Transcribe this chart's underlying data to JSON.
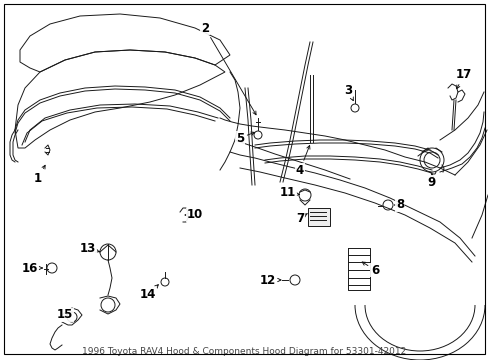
{
  "background_color": "#ffffff",
  "border_color": "#000000",
  "text_color": "#000000",
  "fig_width": 4.89,
  "fig_height": 3.6,
  "dpi": 100,
  "line_color": "#1a1a1a",
  "lw": 0.7,
  "caption": "1996 Toyota RAV4 Hood & Components Hood Diagram for 53301-42012",
  "caption_fontsize": 6.5,
  "label_fontsize": 8.5
}
